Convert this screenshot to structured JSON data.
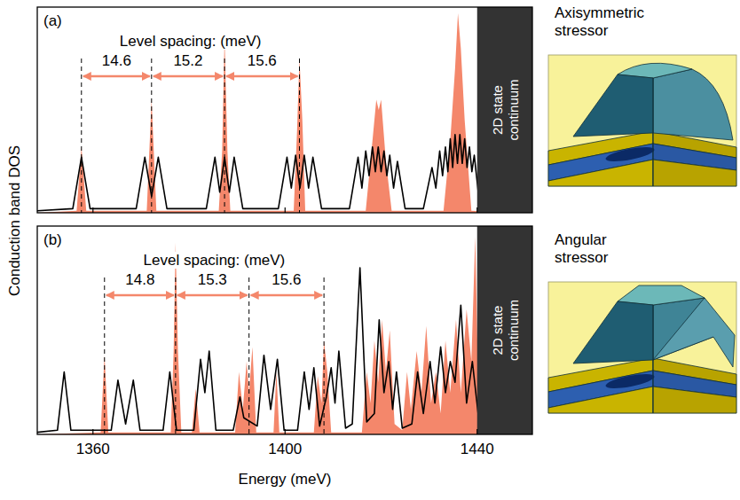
{
  "chart_data": [
    {
      "type": "line",
      "title": "(a)",
      "xlim": [
        1348.4,
        1451.5
      ],
      "xticks": [
        1360,
        1400,
        1440
      ],
      "ylim": [
        0,
        1
      ],
      "tick_labels": false,
      "series": [
        {
          "type": "area",
          "color": "#f4876b",
          "x": [
            1348.4,
            1356.6,
            1357.6,
            1358.6,
            1371.2,
            1372.2,
            1373.2,
            1386.2,
            1386.9,
            1387.4,
            1388.0,
            1388.6,
            1401.8,
            1402.5,
            1403.0,
            1403.6,
            1404.2,
            1416.8,
            1418.0,
            1419.0,
            1419.5,
            1420.0,
            1421.0,
            1422.2,
            1433.0,
            1434.4,
            1435.4,
            1436.0,
            1436.6,
            1437.4,
            1438.8,
            1451.5
          ],
          "values": [
            0,
            0.01,
            0.32,
            0.01,
            0.01,
            0.55,
            0.01,
            0.01,
            0.3,
            0.85,
            0.3,
            0.01,
            0.01,
            0.4,
            0.75,
            0.45,
            0.01,
            0.01,
            0.3,
            0.55,
            0.5,
            0.55,
            0.25,
            0.01,
            0.01,
            0.35,
            0.7,
            0.97,
            0.8,
            0.45,
            0.01,
            0
          ]
        },
        {
          "type": "line",
          "color": "#000000",
          "x": [
            1348.4,
            1355.8,
            1357.6,
            1359.4,
            1369.0,
            1370.8,
            1372.2,
            1373.6,
            1375.4,
            1383.6,
            1385.4,
            1386.4,
            1387.4,
            1388.4,
            1389.4,
            1391.2,
            1398.6,
            1400.4,
            1401.3,
            1402.2,
            1403.1,
            1404.0,
            1404.9,
            1405.8,
            1407.6,
            1413.4,
            1415.2,
            1416.0,
            1416.8,
            1417.5,
            1418.2,
            1418.8,
            1419.4,
            1420.0,
            1420.6,
            1421.2,
            1421.8,
            1422.6,
            1423.4,
            1425.0,
            1428.8,
            1430.6,
            1431.4,
            1432.2,
            1432.8,
            1433.4,
            1433.9,
            1434.4,
            1434.9,
            1435.4,
            1435.9,
            1436.4,
            1436.9,
            1437.4,
            1437.9,
            1438.4,
            1438.9,
            1439.4,
            1440.6,
            1451.5
          ],
          "values": [
            0.01,
            0.02,
            0.27,
            0.02,
            0.02,
            0.27,
            0.08,
            0.27,
            0.02,
            0.02,
            0.27,
            0.1,
            0.27,
            0.1,
            0.27,
            0.02,
            0.02,
            0.27,
            0.12,
            0.28,
            0.12,
            0.28,
            0.12,
            0.27,
            0.02,
            0.02,
            0.27,
            0.12,
            0.3,
            0.18,
            0.32,
            0.2,
            0.32,
            0.2,
            0.3,
            0.18,
            0.28,
            0.12,
            0.25,
            0.02,
            0.02,
            0.22,
            0.12,
            0.3,
            0.18,
            0.32,
            0.2,
            0.36,
            0.22,
            0.38,
            0.24,
            0.38,
            0.24,
            0.36,
            0.22,
            0.32,
            0.2,
            0.28,
            0.02,
            0.01
          ]
        }
      ],
      "level_spacing": {
        "label": "Level spacing: (meV)",
        "start": 1357.6,
        "values": [
          14.6,
          15.2,
          15.6
        ]
      },
      "continuum": {
        "label": "2D state continuum",
        "start": 1440
      }
    },
    {
      "type": "line",
      "title": "(b)",
      "xlabel": "Energy (meV)",
      "xlim": [
        1348.4,
        1451.5
      ],
      "xticks": [
        1360,
        1400,
        1440
      ],
      "ylim": [
        0,
        1
      ],
      "tick_labels": "x",
      "series": [
        {
          "type": "area",
          "color": "#f4876b",
          "x": [
            1348.4,
            1361.6,
            1362.4,
            1363.2,
            1376.2,
            1376.8,
            1377.2,
            1377.7,
            1378.4,
            1380.6,
            1381.4,
            1382.2,
            1389.6,
            1390.4,
            1391.2,
            1392.0,
            1392.5,
            1393.2,
            1394.0,
            1397.6,
            1398.2,
            1398.8,
            1406.0,
            1406.8,
            1407.6,
            1408.1,
            1408.8,
            1409.6,
            1416.0,
            1417.0,
            1417.8,
            1418.6,
            1419.4,
            1420.2,
            1421.0,
            1421.8,
            1422.8,
            1424.4,
            1425.4,
            1426.2,
            1427.4,
            1428.4,
            1429.4,
            1430.4,
            1431.4,
            1432.4,
            1433.4,
            1434.4,
            1435.6,
            1436.6,
            1437.8,
            1438.8,
            1439.6,
            1440.4,
            1451.5
          ],
          "values": [
            0,
            0.01,
            0.38,
            0.01,
            0.01,
            0.4,
            0.92,
            0.4,
            0.01,
            0.01,
            0.22,
            0.01,
            0.01,
            0.3,
            0.12,
            0.35,
            0.2,
            0.42,
            0.01,
            0.01,
            0.3,
            0.01,
            0.01,
            0.28,
            0.15,
            0.45,
            0.3,
            0.01,
            0.01,
            0.3,
            0.15,
            0.45,
            0.25,
            0.55,
            0.3,
            0.5,
            0.05,
            0.02,
            0.3,
            0.12,
            0.4,
            0.2,
            0.52,
            0.15,
            0.3,
            0.1,
            0.45,
            0.2,
            0.55,
            0.2,
            0.6,
            0.35,
            0.95,
            0.05,
            0
          ]
        },
        {
          "type": "line",
          "color": "#000000",
          "x": [
            1348.4,
            1352.6,
            1354.0,
            1355.4,
            1363.8,
            1365.2,
            1366.8,
            1368.4,
            1369.8,
            1374.6,
            1376.0,
            1377.4,
            1381.0,
            1382.4,
            1383.3,
            1384.2,
            1385.6,
            1389.2,
            1390.6,
            1391.4,
            1394.2,
            1395.6,
            1397.0,
            1398.4,
            1399.8,
            1402.6,
            1404.0,
            1405.0,
            1406.0,
            1407.2,
            1408.6,
            1409.6,
            1410.4,
            1411.2,
            1412.6,
            1414.0,
            1415.6,
            1417.0,
            1418.6,
            1419.6,
            1420.6,
            1421.6,
            1422.4,
            1423.2,
            1424.4,
            1426.4,
            1427.6,
            1428.8,
            1430.2,
            1431.2,
            1432.4,
            1433.4,
            1434.4,
            1435.4,
            1436.6,
            1437.8,
            1439.0,
            1440.2,
            1441.0,
            1451.5
          ],
          "values": [
            0.01,
            0.02,
            0.3,
            0.02,
            0.02,
            0.26,
            0.05,
            0.26,
            0.02,
            0.02,
            0.3,
            0.02,
            0.02,
            0.36,
            0.2,
            0.4,
            0.02,
            0.02,
            0.18,
            0.08,
            0.04,
            0.38,
            0.12,
            0.36,
            0.02,
            0.02,
            0.3,
            0.12,
            0.32,
            0.04,
            0.18,
            0.32,
            0.15,
            0.4,
            0.03,
            0.05,
            0.8,
            0.06,
            0.1,
            0.55,
            0.2,
            0.35,
            0.12,
            0.3,
            0.03,
            0.05,
            0.3,
            0.1,
            0.35,
            0.15,
            0.42,
            0.2,
            0.35,
            0.25,
            0.62,
            0.15,
            0.35,
            0.1,
            0.02,
            0.01
          ]
        }
      ],
      "level_spacing": {
        "label": "Level spacing: (meV)",
        "start": 1362.4,
        "values": [
          14.8,
          15.3,
          15.6
        ]
      },
      "continuum": {
        "label": "2D state continuum",
        "start": 1440
      }
    }
  ],
  "figure": {
    "ylabel": "Conduction band DOS",
    "diagrams": [
      {
        "title": "Axisymmetric stressor"
      },
      {
        "title": "Angular stressor"
      }
    ]
  }
}
